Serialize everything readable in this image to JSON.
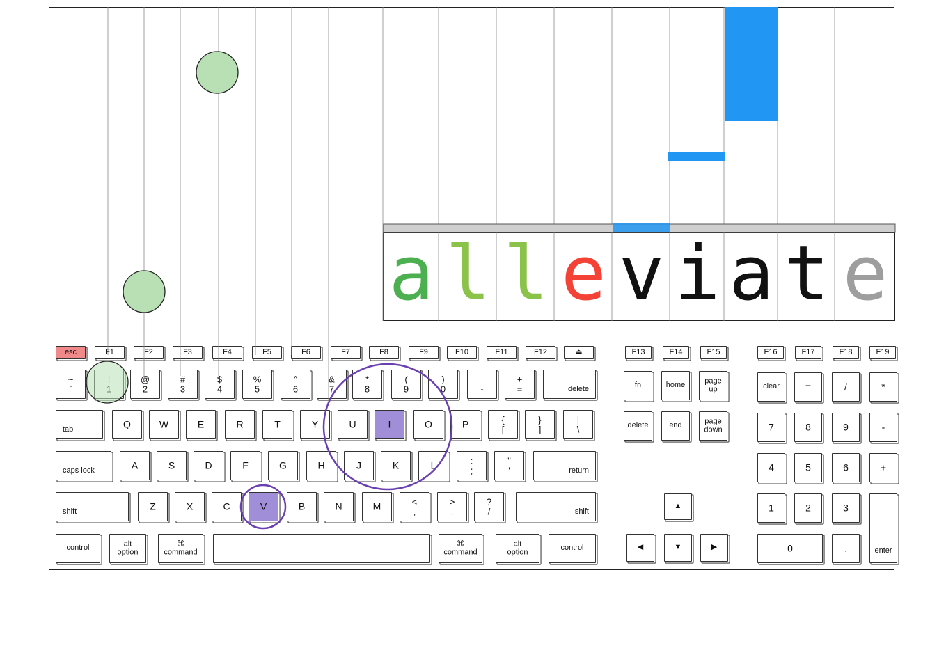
{
  "colors": {
    "correct": "#4caf50",
    "correct_light": "#8bc34a",
    "error": "#f44336",
    "pending": "#111111",
    "remaining": "#9e9e9e",
    "bar": "#2196f3",
    "circle_fill": "#b9e0b5",
    "highlight_key": "#a08fd8",
    "ring": "#6a3fb0",
    "esc_key": "#f08a8a"
  },
  "word": {
    "letters": [
      {
        "char": "a",
        "status": "correct"
      },
      {
        "char": "l",
        "status": "correct_light"
      },
      {
        "char": "l",
        "status": "correct_light"
      },
      {
        "char": "e",
        "status": "error"
      },
      {
        "char": "v",
        "status": "pending"
      },
      {
        "char": "i",
        "status": "pending"
      },
      {
        "char": "a",
        "status": "pending"
      },
      {
        "char": "t",
        "status": "pending"
      },
      {
        "char": "e",
        "status": "remaining"
      }
    ]
  },
  "highlighted_keys": [
    "I",
    "V"
  ],
  "keyboard": {
    "function_row": {
      "esc": "esc",
      "f1": "F1",
      "f2": "F2",
      "f3": "F3",
      "f4": "F4",
      "f5": "F5",
      "f6": "F6",
      "f7": "F7",
      "f8": "F8",
      "f9": "F9",
      "f10": "F10",
      "f11": "F11",
      "f12": "F12",
      "eject": "⏏",
      "f13": "F13",
      "f14": "F14",
      "f15": "F15",
      "f16": "F16",
      "f17": "F17",
      "f18": "F18",
      "f19": "F19"
    },
    "number_row": {
      "backtick": "~\n`",
      "k1": "!\n1",
      "k2": "@\n2",
      "k3": "#\n3",
      "k4": "$\n4",
      "k5": "%\n5",
      "k6": "^\n6",
      "k7": "&\n7",
      "k8": "*\n8",
      "k9": "(\n9",
      "k0": ")\n0",
      "minus": "_\n-",
      "equals": "+\n=",
      "delete": "delete"
    },
    "top_row": {
      "tab": "tab",
      "q": "Q",
      "w": "W",
      "e": "E",
      "r": "R",
      "t": "T",
      "y": "Y",
      "u": "U",
      "i": "I",
      "o": "O",
      "p": "P",
      "lbracket": "{\n[",
      "rbracket": "}\n]",
      "backslash": "|\n\\"
    },
    "home_row": {
      "caps": "caps lock",
      "a": "A",
      "s": "S",
      "d": "D",
      "f": "F",
      "g": "G",
      "h": "H",
      "j": "J",
      "k": "K",
      "l": "L",
      "semicolon": ":\n;",
      "quote": "\"\n'",
      "return": "return"
    },
    "bottom_row": {
      "lshift": "shift",
      "z": "Z",
      "x": "X",
      "c": "C",
      "v": "V",
      "b": "B",
      "n": "N",
      "m": "M",
      "comma": "<\n,",
      "period": ">\n.",
      "slash": "?\n/",
      "rshift": "shift"
    },
    "space_row": {
      "lcontrol": "control",
      "loption": "alt\noption",
      "lcommand": "⌘\ncommand",
      "rcommand": "⌘\ncommand",
      "roption": "alt\noption",
      "rcontrol": "control"
    },
    "nav": {
      "fn": "fn",
      "home": "home",
      "pageup": "page\nup",
      "delete": "delete",
      "end": "end",
      "pagedown": "page\ndown",
      "up": "▲",
      "left": "◀",
      "down": "▼",
      "right": "▶"
    },
    "numpad": {
      "clear": "clear",
      "equals": "=",
      "divide": "/",
      "multiply": "*",
      "n7": "7",
      "n8": "8",
      "n9": "9",
      "minus": "-",
      "n4": "4",
      "n5": "5",
      "n6": "6",
      "plus": "+",
      "n1": "1",
      "n2": "2",
      "n3": "3",
      "enter": "enter",
      "n0": "0",
      "dot": "."
    }
  }
}
